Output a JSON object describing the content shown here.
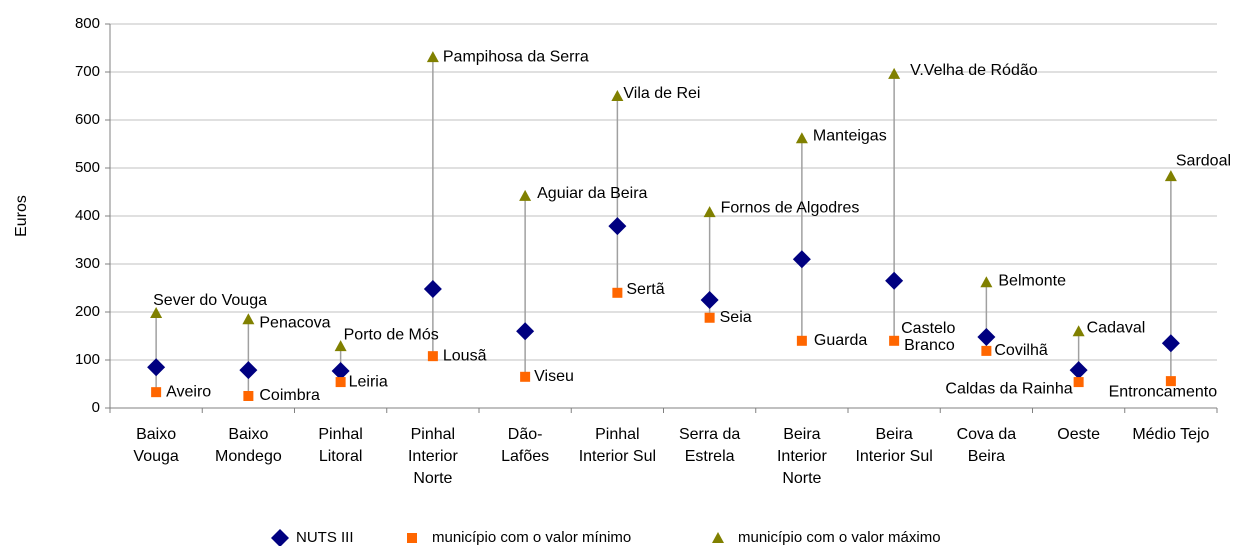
{
  "chart_data": {
    "type": "dotrange",
    "y_axis_label": "Euros",
    "categories": [
      "Baixo\nVouga",
      "Baixo\nMondego",
      "Pinhal\nLitoral",
      "Pinhal\nInterior\nNorte",
      "Dão-\nLafões",
      "Pinhal\nInterior Sul",
      "Serra da\nEstrela",
      "Beira\nInterior\nNorte",
      "Beira\nInterior Sul",
      "Cova da\nBeira",
      "Oeste",
      "Médio Tejo"
    ],
    "series": [
      {
        "name": "NUTS III",
        "color": "#000080",
        "marker": "diamond",
        "values": [
          85,
          79,
          77,
          248,
          160,
          379,
          225,
          310,
          265,
          148,
          79,
          135
        ]
      },
      {
        "name": "município com o valor mínimo",
        "color": "#ff6600",
        "marker": "square",
        "values": [
          33,
          25,
          54,
          108,
          65,
          240,
          188,
          140,
          140,
          119,
          54,
          56
        ],
        "point_labels": [
          "Aveiro",
          "Coimbra",
          "Leiria",
          "Lousã",
          "Viseu",
          "Sertã",
          "Seia",
          "Guarda",
          "Castelo\nBranco",
          "Covilhã",
          "Caldas da Rainha",
          "Entroncamento"
        ]
      },
      {
        "name": "município com o valor máximo",
        "color": "#808000",
        "marker": "triangle",
        "values": [
          198,
          185,
          129,
          731,
          442,
          650,
          408,
          562,
          696,
          262,
          160,
          483
        ],
        "point_labels": [
          "Sever do Vouga",
          "Penacova",
          "Porto de Mós",
          "Pampihosa da Serra",
          "Aguiar da Beira",
          "Vila de Rei",
          "Fornos de Algodres",
          "Manteigas",
          "V.Velha de Ródão",
          "Belmonte",
          "Cadaval",
          "Sardoal"
        ]
      }
    ],
    "ylim": [
      0,
      800
    ],
    "yticks": [
      0,
      100,
      200,
      300,
      400,
      500,
      600,
      700,
      800
    ],
    "grid": true,
    "legend": "bottom"
  }
}
